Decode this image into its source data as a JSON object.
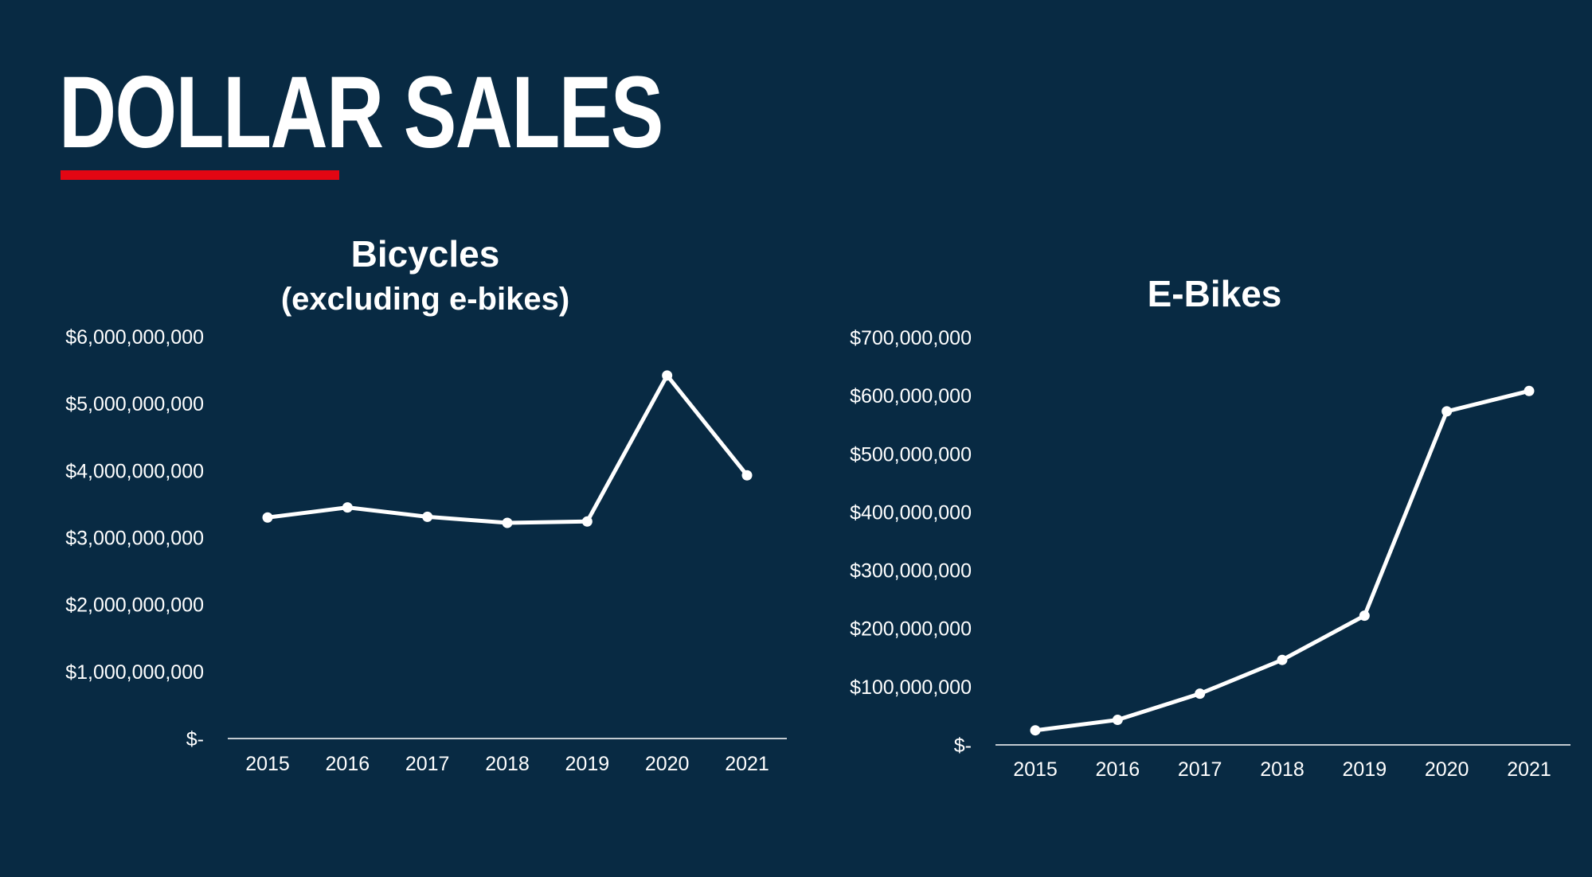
{
  "page": {
    "title": "DOLLAR SALES",
    "accent_color": "#e30613",
    "background_color": "#082a43"
  },
  "chart_data": [
    {
      "type": "line",
      "title": "Bicycles",
      "subtitle": "(excluding e-bikes)",
      "categories": [
        "2015",
        "2016",
        "2017",
        "2018",
        "2019",
        "2020",
        "2021"
      ],
      "values": [
        3300000000,
        3450000000,
        3310000000,
        3220000000,
        3240000000,
        5420000000,
        3930000000
      ],
      "ylim": [
        0,
        6000000000
      ],
      "yticks": [
        0,
        1000000000,
        2000000000,
        3000000000,
        4000000000,
        5000000000,
        6000000000
      ],
      "ytick_labels": [
        "$-",
        "$1,000,000,000",
        "$2,000,000,000",
        "$3,000,000,000",
        "$4,000,000,000",
        "$5,000,000,000",
        "$6,000,000,000"
      ],
      "grid": false,
      "line_color": "#ffffff"
    },
    {
      "type": "line",
      "title": "E-Bikes",
      "categories": [
        "2015",
        "2016",
        "2017",
        "2018",
        "2019",
        "2020",
        "2021"
      ],
      "values": [
        25000000,
        43000000,
        88000000,
        146000000,
        222000000,
        573000000,
        608000000
      ],
      "ylim": [
        0,
        700000000
      ],
      "yticks": [
        0,
        100000000,
        200000000,
        300000000,
        400000000,
        500000000,
        600000000,
        700000000
      ],
      "ytick_labels": [
        "$-",
        "$100,000,000",
        "$200,000,000",
        "$300,000,000",
        "$400,000,000",
        "$500,000,000",
        "$600,000,000",
        "$700,000,000"
      ],
      "grid": false,
      "line_color": "#ffffff"
    }
  ]
}
